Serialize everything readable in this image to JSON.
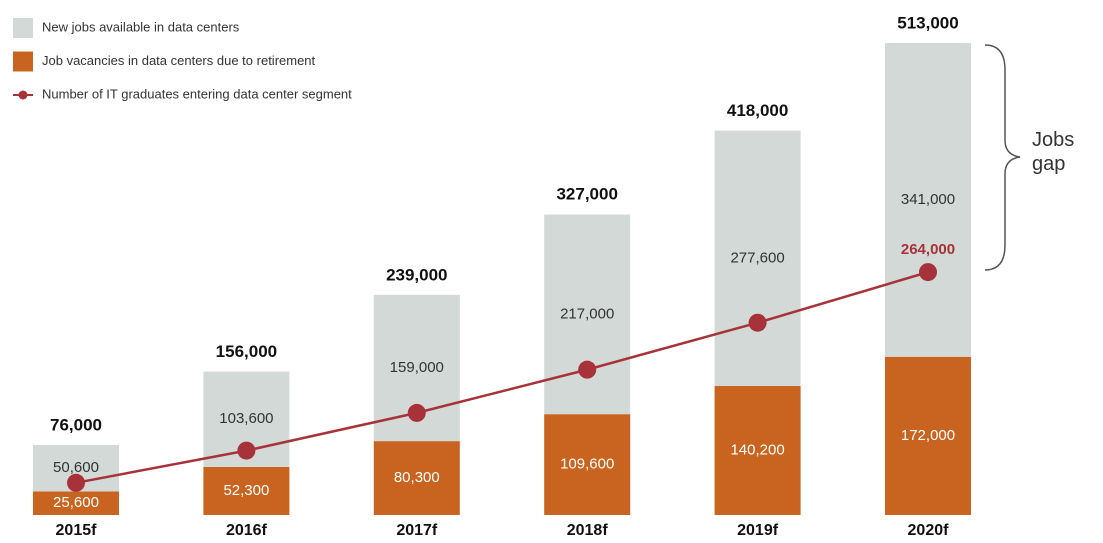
{
  "chart_data": {
    "type": "stacked_bar_line",
    "categories": [
      "2015f",
      "2016f",
      "2017f",
      "2018f",
      "2019f",
      "2020f"
    ],
    "series": [
      {
        "name": "New jobs available in data centers",
        "color": "#d3d9d6",
        "type": "bar",
        "values": [
          50600,
          103600,
          159000,
          217000,
          277600,
          341000
        ],
        "value_labels": [
          "50,600",
          "103,600",
          "159,000",
          "217,000",
          "277,600",
          "341,000"
        ]
      },
      {
        "name": "Job vacancies in data centers due to retirement",
        "color": "#c8641f",
        "type": "bar",
        "values": [
          25600,
          52300,
          80300,
          109600,
          140200,
          172000
        ],
        "value_labels": [
          "25,600",
          "52,300",
          "80,300",
          "109,600",
          "140,200",
          "172,000"
        ]
      },
      {
        "name": "Number of IT graduates entering data center segment",
        "color": "#a8323a",
        "type": "line",
        "values": [
          35000,
          70000,
          111000,
          158000,
          209000,
          264000
        ],
        "value_labels": [
          null,
          null,
          null,
          null,
          null,
          "264,000"
        ]
      }
    ],
    "totals": [
      76000,
      156000,
      239000,
      327000,
      418000,
      513000
    ],
    "total_labels": [
      "76,000",
      "156,000",
      "239,000",
      "327,000",
      "418,000",
      "513,000"
    ],
    "annotation": "Jobs gap",
    "ylim": [
      0,
      550000
    ],
    "legend": "top-left"
  }
}
